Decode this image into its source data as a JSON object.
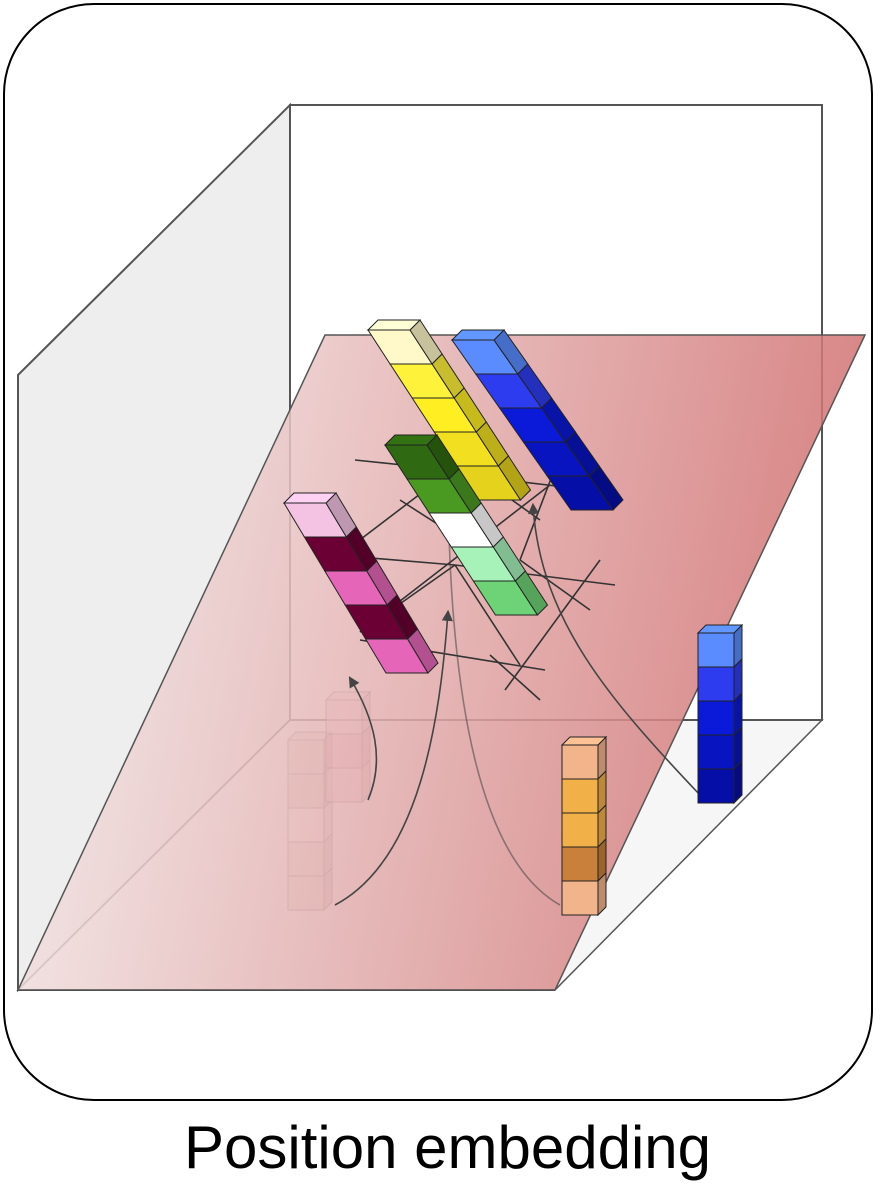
{
  "caption": "Position embedding",
  "colors": {
    "frame_stroke": "#000000",
    "box_edge": "#555555",
    "wall_fill": "#e8e8e8",
    "plane_light": "#f6f0f0",
    "plane_dark": "#d17070",
    "arrow": "#444444",
    "grid_line": "#333333"
  },
  "columns": [
    {
      "name": "column-yellow",
      "colors": [
        "#fff8c8",
        "#fff23a",
        "#ffee22",
        "#f2e020",
        "#e4d21c"
      ],
      "opacity": 1
    },
    {
      "name": "column-blue-top",
      "colors": [
        "#5a8cff",
        "#2e3cf0",
        "#0a1ad8",
        "#0814c0",
        "#060ea8"
      ],
      "opacity": 1
    },
    {
      "name": "column-green",
      "colors": [
        "#2f6a12",
        "#4a9a22",
        "#ffffff",
        "#a6f2b8",
        "#6ed276"
      ],
      "opacity": 1
    },
    {
      "name": "column-pink",
      "colors": [
        "#f4c2e2",
        "#6a0033",
        "#e566b8",
        "#6a0033",
        "#e566b8"
      ],
      "opacity": 1
    },
    {
      "name": "column-orange",
      "colors": [
        "#f2b48a",
        "#f2b048",
        "#f2b048",
        "#c8803a",
        "#f2b48a"
      ],
      "opacity": 1
    },
    {
      "name": "column-blue-right",
      "colors": [
        "#5a8cff",
        "#2e3cf0",
        "#0a1ad8",
        "#0814c0",
        "#060ea8"
      ],
      "opacity": 1
    },
    {
      "name": "column-ghost-beige",
      "colors": [
        "#c8bca0",
        "#c8bca0",
        "#f4ede0",
        "#d6cdb0",
        "#d6cdb0"
      ],
      "opacity": 0.55
    },
    {
      "name": "column-ghost-pink",
      "colors": [
        "#f2c4d4",
        "#e28aa8",
        "#f2b4c8"
      ],
      "opacity": 0.55
    }
  ]
}
